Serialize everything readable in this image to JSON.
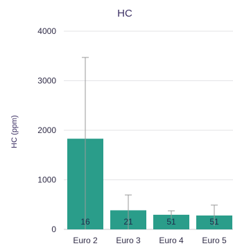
{
  "chart_data": {
    "type": "bar",
    "title": "HC",
    "ylabel": "HC (ppm)",
    "xlabel": "",
    "categories": [
      "Euro 2",
      "Euro 3",
      "Euro 4",
      "Euro 5"
    ],
    "values": [
      1830,
      385,
      295,
      280
    ],
    "error_upper": [
      3470,
      695,
      375,
      490
    ],
    "error_lower": [
      0,
      0,
      215,
      70
    ],
    "sample_counts": [
      "16",
      "21",
      "51",
      "51"
    ],
    "yticks": [
      0,
      1000,
      2000,
      3000,
      4000
    ],
    "ytick_labels": [
      "0",
      "1000",
      "2000",
      "3000",
      "4000"
    ],
    "ylim": [
      0,
      4000
    ],
    "grid": true,
    "colors": {
      "bar": "#2a9d8a",
      "error": "#9a9a9a",
      "grid": "#e3e3e6",
      "text": "#3b2f63"
    }
  }
}
